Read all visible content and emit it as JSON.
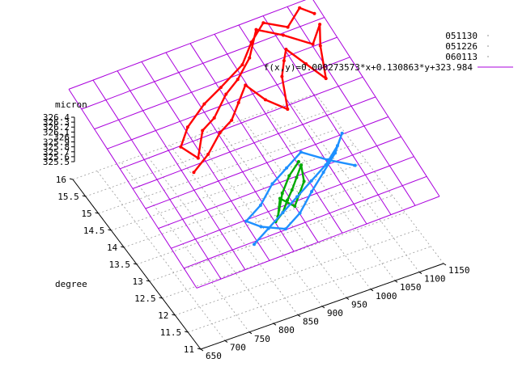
{
  "chart_data": {
    "type": "scatter",
    "title": "",
    "xlabel": "",
    "ylabel": "degree",
    "zlabel": "micron",
    "x_ticks": [
      "650",
      "700",
      "750",
      "800",
      "850",
      "900",
      "950",
      "1000",
      "1050",
      "1100",
      "1150"
    ],
    "y_ticks": [
      "11",
      "11.5",
      "12",
      "12.5",
      "13",
      "13.5",
      "14",
      "14.5",
      "15",
      "15.5",
      "16"
    ],
    "z_ticks": [
      "326.4",
      "326.3",
      "326.2",
      "326.1",
      "326",
      "325.9",
      "325.8",
      "325.7",
      "325.6",
      "325.5"
    ],
    "xlim": [
      650,
      1150
    ],
    "ylim": [
      11,
      16
    ],
    "zlim": [
      325.5,
      326.4
    ],
    "grid": true,
    "legend_position": "top-right",
    "series": [
      {
        "name": "051130",
        "color": "#ff0000",
        "x": [
          760,
          800,
          840,
          880,
          910,
          940,
          960,
          990,
          1010,
          1030,
          1050,
          1070,
          1090,
          1110,
          1130,
          1100,
          1060,
          1020,
          980,
          940,
          900,
          860,
          820,
          790,
          770,
          800,
          850,
          900,
          960,
          1000,
          1040,
          1080,
          1120,
          1140
        ],
        "y": [
          13.2,
          13.4,
          13.7,
          14.0,
          14.3,
          14.6,
          14.2,
          13.9,
          14.5,
          14.8,
          15.1,
          14.7,
          14.3,
          14.9,
          15.3,
          15.0,
          15.4,
          15.7,
          15.2,
          14.9,
          14.6,
          14.3,
          14.0,
          13.6,
          13.9,
          14.2,
          14.5,
          14.8,
          15.1,
          15.5,
          15.8,
          15.6,
          15.9,
          15.7
        ],
        "z": [
          326.1,
          326.2,
          326.3,
          326.2,
          326.25,
          326.3,
          326.2,
          326.1,
          326.3,
          326.35,
          326.3,
          326.2,
          326.1,
          326.3,
          326.4,
          326.3,
          326.35,
          326.4,
          326.3,
          326.2,
          326.25,
          326.1,
          326.2,
          326.0,
          326.1,
          326.2,
          326.3,
          326.25,
          326.3,
          326.35,
          326.4,
          326.3,
          326.35,
          326.3
        ]
      },
      {
        "name": "051226",
        "color": "#00aa00",
        "x": [
          860,
          880,
          900,
          920,
          940,
          960,
          950,
          930,
          910,
          890,
          870,
          900,
          930,
          960
        ],
        "y": [
          11.9,
          12.0,
          12.2,
          12.4,
          12.6,
          12.8,
          12.5,
          12.3,
          12.1,
          12.3,
          12.0,
          12.4,
          12.7,
          12.9
        ],
        "z": [
          325.6,
          325.65,
          325.7,
          325.7,
          325.75,
          325.8,
          325.7,
          325.65,
          325.6,
          325.7,
          325.6,
          325.7,
          325.75,
          325.8
        ]
      },
      {
        "name": "060113",
        "color": "#1e90ff",
        "x": [
          800,
          840,
          880,
          920,
          960,
          1000,
          1040,
          1060,
          1030,
          990,
          950,
          910,
          870,
          830,
          810,
          850,
          890,
          930,
          970,
          1010,
          1050
        ],
        "y": [
          11.6,
          11.8,
          12.0,
          12.2,
          12.4,
          12.6,
          12.9,
          13.1,
          12.8,
          12.5,
          12.2,
          11.9,
          11.7,
          11.9,
          12.1,
          12.3,
          12.6,
          12.8,
          13.0,
          12.7,
          12.4
        ],
        "z": [
          325.55,
          325.6,
          325.65,
          325.7,
          325.75,
          325.8,
          325.85,
          325.9,
          325.8,
          325.75,
          325.7,
          325.6,
          325.55,
          325.6,
          325.65,
          325.7,
          325.8,
          325.85,
          325.9,
          325.8,
          325.75
        ]
      },
      {
        "name": "f(x,y)=0.000273573*x+0.130863*y+323.984",
        "color": "#aa00dd",
        "kind": "plane",
        "coef": {
          "a": 0.000273573,
          "b": 0.130863,
          "c": 323.984
        }
      }
    ]
  }
}
